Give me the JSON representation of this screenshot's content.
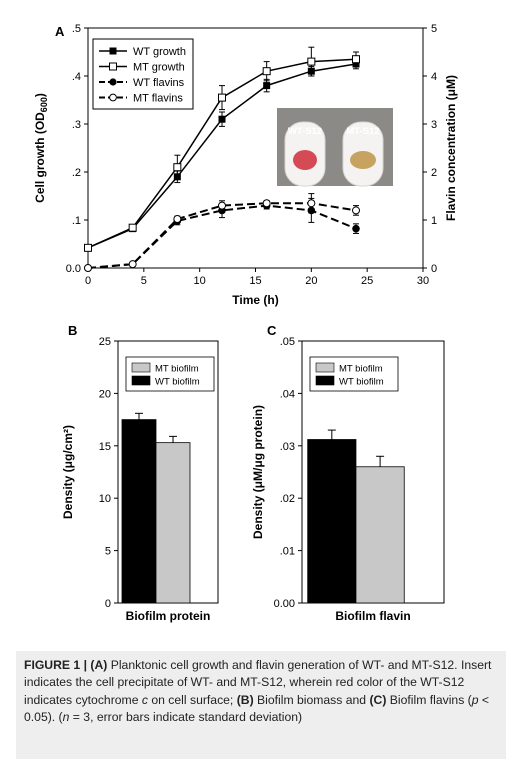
{
  "chart_data": [
    {
      "panel_letter": "A",
      "type": "line",
      "xlabel": "Time (h)",
      "ylabel_left_prefix": "Cell growth (OD",
      "ylabel_left_sub": "600",
      "ylabel_left_suffix": ")",
      "ylabel_right": "Flavin concentration (μM)",
      "xlim": [
        0,
        30
      ],
      "ylim_left": [
        0,
        0.5
      ],
      "ylim_right": [
        0,
        5
      ],
      "x_ticks": [
        "0",
        "5",
        "10",
        "15",
        "20",
        "25",
        "30"
      ],
      "y_left_ticks": [
        "0.0",
        ".1",
        ".2",
        ".3",
        ".4",
        ".5"
      ],
      "y_right_ticks": [
        "0",
        "1",
        "2",
        "3",
        "4",
        "5"
      ],
      "legend_position": "top-left",
      "series": [
        {
          "name": "WT growth",
          "axis": "left",
          "style": "solid",
          "marker": "filled-square",
          "x": [
            0,
            4,
            8,
            12,
            16,
            20,
            24
          ],
          "y": [
            0.042,
            0.082,
            0.19,
            0.31,
            0.38,
            0.41,
            0.425
          ],
          "err": [
            0.003,
            0.004,
            0.012,
            0.015,
            0.013,
            0.01,
            0.01
          ]
        },
        {
          "name": "MT growth",
          "axis": "left",
          "style": "solid",
          "marker": "open-square",
          "x": [
            0,
            4,
            8,
            12,
            16,
            20,
            24
          ],
          "y": [
            0.042,
            0.084,
            0.21,
            0.355,
            0.41,
            0.43,
            0.435
          ],
          "err": [
            0.003,
            0.004,
            0.025,
            0.025,
            0.02,
            0.03,
            0.015
          ]
        },
        {
          "name": "WT flavins",
          "axis": "right",
          "style": "dashed",
          "marker": "filled-circle",
          "x": [
            0,
            4,
            8,
            12,
            16,
            20,
            24
          ],
          "y": [
            0,
            0.08,
            0.98,
            1.2,
            1.3,
            1.2,
            0.82
          ],
          "err": [
            0,
            0.02,
            0.08,
            0.15,
            0.07,
            0.25,
            0.1
          ]
        },
        {
          "name": "MT flavins",
          "axis": "right",
          "style": "dashed",
          "marker": "open-circle",
          "x": [
            0,
            4,
            8,
            12,
            16,
            20,
            24
          ],
          "y": [
            0,
            0.08,
            1.02,
            1.3,
            1.35,
            1.35,
            1.2
          ],
          "err": [
            0,
            0.02,
            0.06,
            0.1,
            0.05,
            0.2,
            0.1
          ]
        }
      ],
      "inset": {
        "labels": [
          "WT-S12",
          "MT-S12"
        ],
        "tube_colors": [
          "#d44a55",
          "#c8a260"
        ],
        "bg_color": "#8c8a86"
      }
    },
    {
      "panel_letter": "B",
      "type": "bar",
      "categories": [
        "Biofilm protein"
      ],
      "ylabel": "Density (μg/cm²)",
      "ylim": [
        0,
        25
      ],
      "y_ticks": [
        "0",
        "5",
        "10",
        "15",
        "20",
        "25"
      ],
      "legend_position": "top-right",
      "series": [
        {
          "name": "MT biofilm",
          "values": [
            15.3
          ],
          "err": [
            0.6
          ],
          "color": "#c8c8c8",
          "order": 2
        },
        {
          "name": "WT biofilm",
          "values": [
            17.5
          ],
          "err": [
            0.6
          ],
          "color": "#000000",
          "order": 1
        }
      ]
    },
    {
      "panel_letter": "C",
      "type": "bar",
      "categories": [
        "Biofilm flavin"
      ],
      "ylabel": "Density (μM/μg protein)",
      "ylim": [
        0,
        0.05
      ],
      "y_ticks": [
        "0.00",
        ".01",
        ".02",
        ".03",
        ".04",
        ".05"
      ],
      "legend_position": "top-right",
      "series": [
        {
          "name": "MT biofilm",
          "values": [
            0.026
          ],
          "err": [
            0.002
          ],
          "color": "#c8c8c8",
          "order": 2
        },
        {
          "name": "WT biofilm",
          "values": [
            0.0312
          ],
          "err": [
            0.0018
          ],
          "color": "#000000",
          "order": 1
        }
      ]
    }
  ],
  "caption": {
    "figure_label": "FIGURE 1 |",
    "seg1_bold": "(A)",
    "seg1_text": " Planktonic cell growth and flavin generation of WT- and MT-S12. Insert indicates the cell precipitate of WT- and MT-S12, wherein red color of the WT-S12 indicates cytochrome ",
    "seg1_italic": "c",
    "seg1_text2": " on cell surface; ",
    "seg2_bold": "(B)",
    "seg2_text": " Biofilm biomass and ",
    "seg3_bold": "(C)",
    "seg3_text": " Biofilm flavins (",
    "seg3_italic": "p",
    "seg3_text2": " < 0.05). (",
    "seg3_italic2": "n",
    "seg3_text3": " = 3, error bars indicate standard deviation)"
  }
}
